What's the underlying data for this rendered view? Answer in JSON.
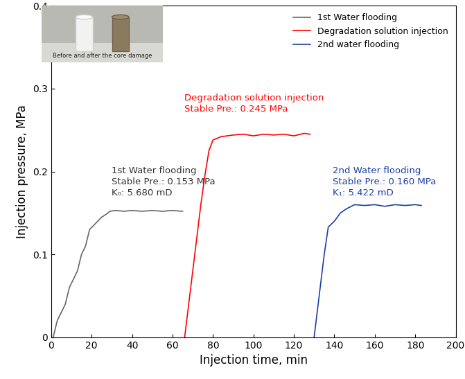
{
  "chart_data": {
    "type": "line",
    "x_label": "Injection time, min",
    "y_label": "Injection pressure, MPa",
    "xlim": [
      0,
      200
    ],
    "xticks": [
      0,
      20,
      40,
      60,
      80,
      100,
      120,
      140,
      160,
      180,
      200
    ],
    "ylim": [
      0,
      0.4
    ],
    "yticks": [
      0,
      0.1,
      0.2,
      0.3,
      0.4
    ],
    "grid": false,
    "legend": "upper right",
    "series": [
      {
        "name": "1st Water flooding",
        "color": "#666666",
        "x": [
          1,
          3,
          5,
          7,
          9,
          11,
          13,
          15,
          17,
          19,
          21,
          23,
          25,
          27,
          29,
          32,
          36,
          40,
          45,
          50,
          55,
          60,
          65
        ],
        "values": [
          0,
          0.02,
          0.03,
          0.04,
          0.06,
          0.07,
          0.08,
          0.1,
          0.11,
          0.13,
          0.135,
          0.14,
          0.145,
          0.148,
          0.152,
          0.153,
          0.152,
          0.153,
          0.152,
          0.153,
          0.152,
          0.153,
          0.152
        ]
      },
      {
        "name": "Degradation solution injection",
        "color": "#ff0000",
        "x": [
          66,
          68,
          70,
          72,
          74,
          76,
          78,
          80,
          84,
          90,
          95,
          100,
          105,
          110,
          115,
          120,
          125,
          128
        ],
        "values": [
          0,
          0.04,
          0.08,
          0.12,
          0.16,
          0.195,
          0.225,
          0.238,
          0.242,
          0.244,
          0.245,
          0.243,
          0.245,
          0.244,
          0.245,
          0.243,
          0.246,
          0.245
        ]
      },
      {
        "name": "2nd water flooding",
        "color": "#1a3fa8",
        "x": [
          130,
          131,
          133,
          135,
          137,
          140,
          143,
          146,
          150,
          155,
          160,
          165,
          170,
          175,
          180,
          183
        ],
        "values": [
          0,
          0.02,
          0.06,
          0.1,
          0.133,
          0.14,
          0.15,
          0.155,
          0.16,
          0.159,
          0.16,
          0.158,
          0.16,
          0.159,
          0.16,
          0.159
        ]
      }
    ],
    "annotations": [
      {
        "text": "1st Water flooding\nStable Pre.: 0.153 MPa\nK₀: 5.680 mD",
        "color": "#333333"
      },
      {
        "text": "Degradation solution injection\nStable Pre.: 0.245 MPa",
        "color": "#ff0000"
      },
      {
        "text": "2nd Water flooding\nStable Pre.: 0.160 MPa\nK₁: 5.422 mD",
        "color": "#1a3fa8"
      }
    ],
    "inset_caption": "Before and after the core damage"
  }
}
